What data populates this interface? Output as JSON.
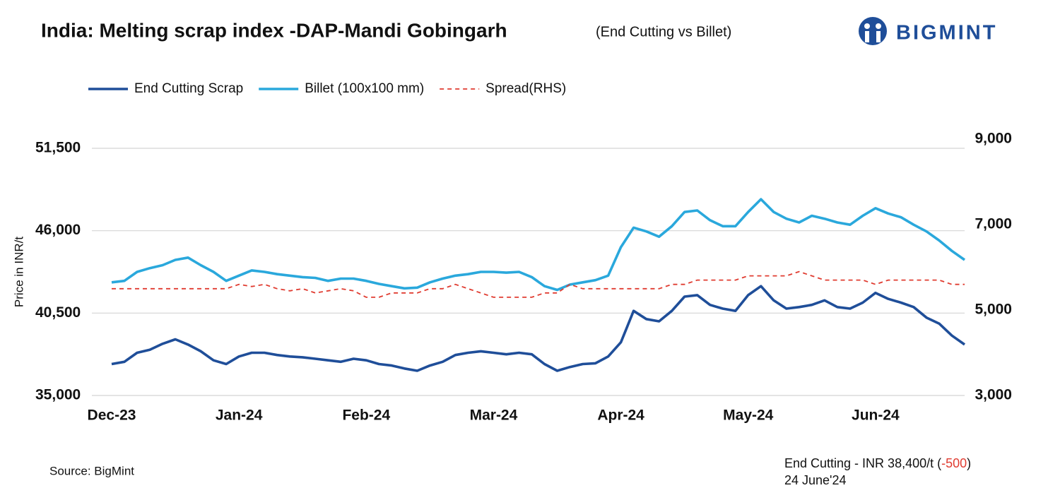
{
  "chart_data": {
    "type": "line",
    "title": "India: Melting scrap index -DAP-Mandi Gobingarh",
    "subtitle": "(End Cutting vs Billet)",
    "brand": "BIGMINT",
    "y_label": "Price in INR/t",
    "source": "Source: BigMint",
    "annotation": {
      "text": "End Cutting - INR 38,400/t (",
      "change": "-500",
      "close": ")",
      "date": "24 June'24"
    },
    "categories": [
      "Dec-23",
      null,
      null,
      null,
      null,
      null,
      null,
      null,
      null,
      null,
      "Jan-24",
      null,
      null,
      null,
      null,
      null,
      null,
      null,
      null,
      null,
      "Feb-24",
      null,
      null,
      null,
      null,
      null,
      null,
      null,
      null,
      null,
      "Mar-24",
      null,
      null,
      null,
      null,
      null,
      null,
      null,
      null,
      null,
      "Apr-24",
      null,
      null,
      null,
      null,
      null,
      null,
      null,
      null,
      null,
      "May-24",
      null,
      null,
      null,
      null,
      null,
      null,
      null,
      null,
      null,
      "Jun-24",
      null,
      null,
      null,
      null,
      null,
      null,
      null
    ],
    "ylim": [
      35000,
      51500
    ],
    "yticks": [
      {
        "value": 35000,
        "label": "35,000"
      },
      {
        "value": 40500,
        "label": "40,500"
      },
      {
        "value": 46000,
        "label": "46,000"
      },
      {
        "value": 51500,
        "label": "51,500"
      }
    ],
    "y2lim": [
      3000,
      9000
    ],
    "y2ticks": [
      {
        "value": 3000,
        "label": "3,000"
      },
      {
        "value": 5000,
        "label": "5,000"
      },
      {
        "value": 7000,
        "label": "7,000"
      },
      {
        "value": 9000,
        "label": "9,000"
      }
    ],
    "grid": true,
    "series": [
      {
        "name": "End Cutting Scrap",
        "color": "#1f4e99",
        "style": "solid",
        "values": [
          37100,
          37250,
          37850,
          38050,
          38450,
          38750,
          38400,
          37950,
          37350,
          37100,
          37600,
          37850,
          37850,
          37700,
          37600,
          37550,
          37450,
          37350,
          37250,
          37450,
          37350,
          37100,
          37000,
          36800,
          36650,
          37000,
          37250,
          37700,
          37850,
          37950,
          37850,
          37750,
          37850,
          37750,
          37100,
          36650,
          36900,
          37100,
          37150,
          37600,
          38550,
          40650,
          40100,
          39950,
          40650,
          41600,
          41700,
          41050,
          40800,
          40650,
          41700,
          42300,
          41350,
          40800,
          40900,
          41050,
          41350,
          40900,
          40800,
          41200,
          41850,
          41450,
          41200,
          40900,
          40200,
          39800,
          39000,
          38400
        ]
      },
      {
        "name": "Billet (100x100 mm)",
        "color": "#2aa8dc",
        "style": "solid",
        "values": [
          42550,
          42650,
          43250,
          43500,
          43700,
          44050,
          44200,
          43700,
          43250,
          42650,
          43000,
          43350,
          43250,
          43100,
          43000,
          42900,
          42850,
          42650,
          42800,
          42800,
          42650,
          42450,
          42300,
          42150,
          42200,
          42550,
          42800,
          43000,
          43100,
          43250,
          43250,
          43200,
          43250,
          42900,
          42300,
          42050,
          42400,
          42550,
          42700,
          43000,
          44900,
          46200,
          45950,
          45600,
          46300,
          47250,
          47350,
          46700,
          46300,
          46300,
          47250,
          48100,
          47250,
          46800,
          46550,
          47000,
          46800,
          46550,
          46400,
          47000,
          47500,
          47150,
          46900,
          46400,
          45950,
          45350,
          44650,
          44050
        ]
      },
      {
        "name": "Spread(RHS)",
        "color": "#e03c31",
        "style": "dashed",
        "axis": "y2",
        "values": [
          5500,
          5500,
          5500,
          5500,
          5500,
          5500,
          5500,
          5500,
          5500,
          5500,
          5600,
          5550,
          5600,
          5500,
          5450,
          5500,
          5400,
          5450,
          5500,
          5450,
          5300,
          5300,
          5400,
          5400,
          5400,
          5500,
          5500,
          5600,
          5500,
          5400,
          5300,
          5300,
          5300,
          5300,
          5400,
          5400,
          5600,
          5500,
          5500,
          5500,
          5500,
          5500,
          5500,
          5500,
          5600,
          5600,
          5700,
          5700,
          5700,
          5700,
          5800,
          5800,
          5800,
          5800,
          5900,
          5800,
          5700,
          5700,
          5700,
          5700,
          5600,
          5700,
          5700,
          5700,
          5700,
          5700,
          5600,
          5600
        ]
      }
    ]
  }
}
